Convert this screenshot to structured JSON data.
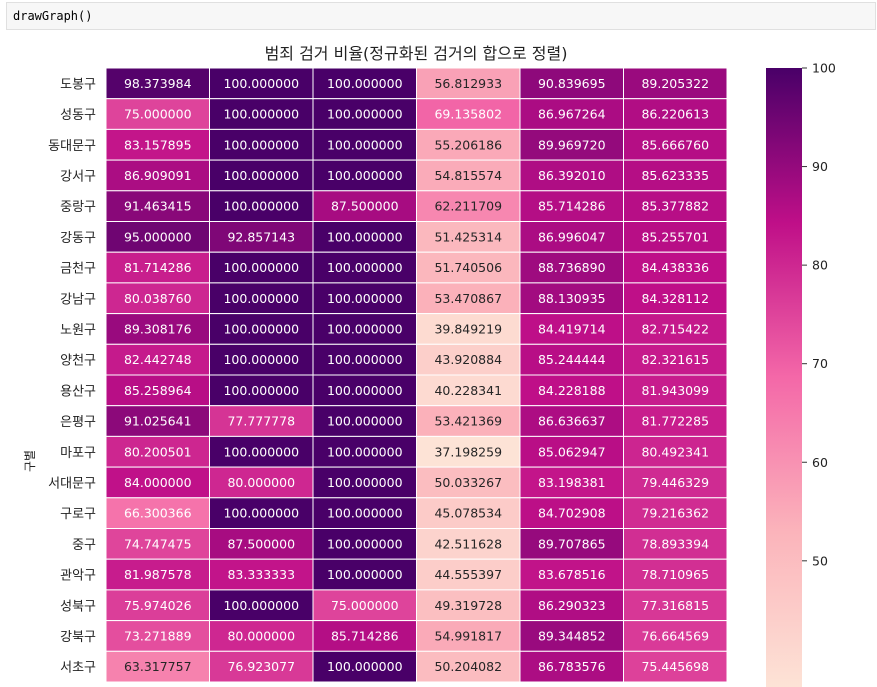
{
  "code_cell": {
    "text": "drawGraph()"
  },
  "chart_data": {
    "type": "heatmap",
    "title": "범죄 검거 비율(정규화된 검거의 합으로 정렬)",
    "ylabel": "구별",
    "rows": [
      "도봉구",
      "성동구",
      "동대문구",
      "강서구",
      "중랑구",
      "강동구",
      "금천구",
      "강남구",
      "노원구",
      "양천구",
      "용산구",
      "은평구",
      "마포구",
      "서대문구",
      "구로구",
      "중구",
      "관악구",
      "성북구",
      "강북구",
      "서초구"
    ],
    "columns": [
      "",
      "",
      "",
      "",
      "",
      ""
    ],
    "values": [
      [
        98.373984,
        100.0,
        100.0,
        56.812933,
        90.839695,
        89.205322
      ],
      [
        75.0,
        100.0,
        100.0,
        69.135802,
        86.967264,
        86.220613
      ],
      [
        83.157895,
        100.0,
        100.0,
        55.206186,
        89.96972,
        85.66676
      ],
      [
        86.909091,
        100.0,
        100.0,
        54.815574,
        86.39201,
        85.623335
      ],
      [
        91.463415,
        100.0,
        87.5,
        62.211709,
        85.714286,
        85.377882
      ],
      [
        95.0,
        92.857143,
        100.0,
        51.425314,
        86.996047,
        85.255701
      ],
      [
        81.714286,
        100.0,
        100.0,
        51.740506,
        88.73689,
        84.438336
      ],
      [
        80.03876,
        100.0,
        100.0,
        53.470867,
        88.130935,
        84.328112
      ],
      [
        89.308176,
        100.0,
        100.0,
        39.849219,
        84.419714,
        82.715422
      ],
      [
        82.442748,
        100.0,
        100.0,
        43.920884,
        85.244444,
        82.321615
      ],
      [
        85.258964,
        100.0,
        100.0,
        40.228341,
        84.228188,
        81.943099
      ],
      [
        91.025641,
        77.777778,
        100.0,
        53.421369,
        86.636637,
        81.772285
      ],
      [
        80.200501,
        100.0,
        100.0,
        37.198259,
        85.062947,
        80.492341
      ],
      [
        84.0,
        80.0,
        100.0,
        50.033267,
        83.198381,
        79.446329
      ],
      [
        66.300366,
        100.0,
        100.0,
        45.078534,
        84.702908,
        79.216362
      ],
      [
        74.747475,
        87.5,
        100.0,
        42.511628,
        89.707865,
        78.893394
      ],
      [
        81.987578,
        83.333333,
        100.0,
        44.555397,
        83.678516,
        78.710965
      ],
      [
        75.974026,
        100.0,
        75.0,
        49.319728,
        86.290323,
        77.316815
      ],
      [
        73.271889,
        80.0,
        85.714286,
        54.991817,
        89.344852,
        76.664569
      ],
      [
        63.317757,
        76.923077,
        100.0,
        50.204082,
        86.783576,
        75.445698
      ]
    ],
    "value_format": "6 decimals",
    "colormap": "RdPu",
    "colorbar": {
      "ticks": [
        50,
        60,
        70,
        80,
        90,
        100
      ]
    },
    "grid": true,
    "legend": "colorbar right"
  }
}
